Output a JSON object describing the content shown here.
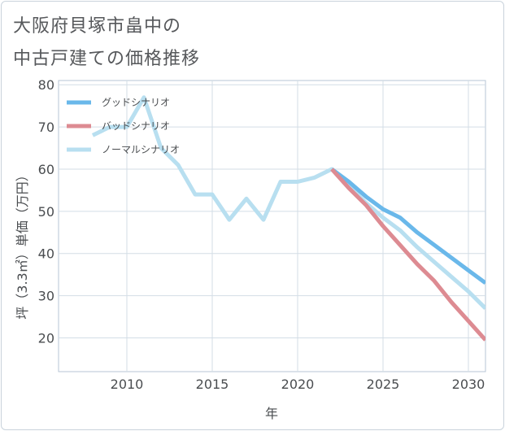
{
  "header": {
    "title_line1": "大阪府貝塚市畠中の",
    "title_line2": "中古戸建ての価格推移"
  },
  "chart_data": {
    "type": "line",
    "title": "大阪府貝塚市畠中の中古戸建ての価格推移",
    "xlabel": "年",
    "ylabel": "坪（3.3㎡）単価（万円）",
    "xlim": [
      2006,
      2031
    ],
    "ylim": [
      12,
      81
    ],
    "xticks": [
      2010,
      2015,
      2020,
      2025,
      2030
    ],
    "yticks": [
      20,
      30,
      40,
      50,
      60,
      70,
      80
    ],
    "grid": true,
    "legend_position": "top-left",
    "series": [
      {
        "name": "グッドシナリオ",
        "color": "#6ab8ea",
        "x": [
          2022,
          2023,
          2024,
          2025,
          2026,
          2027,
          2028,
          2029,
          2030,
          2031
        ],
        "y": [
          60,
          57,
          53.5,
          50.5,
          48.5,
          45,
          42,
          39,
          36,
          33
        ]
      },
      {
        "name": "バッドシナリオ",
        "color": "#dd8b92",
        "x": [
          2022,
          2023,
          2024,
          2025,
          2026,
          2027,
          2028,
          2029,
          2030,
          2031
        ],
        "y": [
          60,
          55.5,
          51.5,
          46.5,
          42,
          37.5,
          33.5,
          28.5,
          24,
          19.5
        ]
      },
      {
        "name": "ノーマルシナリオ",
        "color": "#b8dff0",
        "x": [
          2008,
          2009,
          2010,
          2011,
          2012,
          2013,
          2014,
          2015,
          2016,
          2017,
          2018,
          2019,
          2020,
          2021,
          2022,
          2023,
          2024,
          2025,
          2026,
          2027,
          2028,
          2029,
          2030,
          2031
        ],
        "y": [
          68,
          70,
          70,
          77,
          65,
          61,
          54,
          54,
          48,
          53,
          48,
          57,
          57,
          58,
          60,
          56,
          52,
          48.5,
          45.5,
          41.5,
          38,
          34.5,
          31,
          27
        ]
      }
    ]
  }
}
